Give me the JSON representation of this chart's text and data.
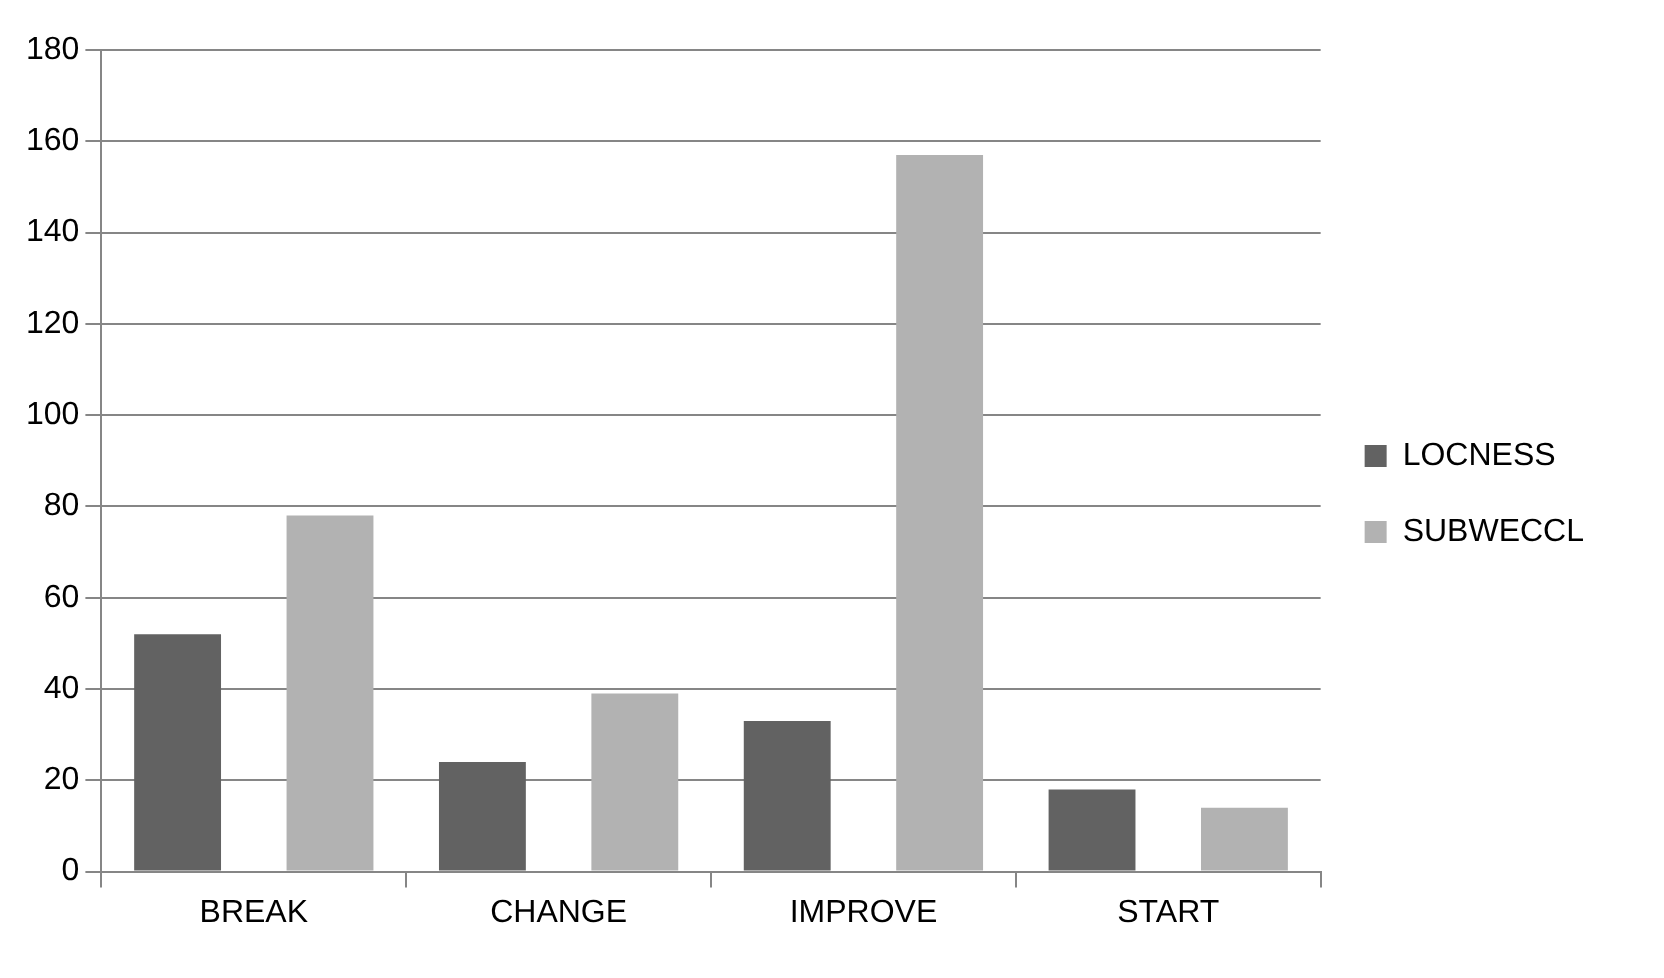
{
  "chart_data": {
    "type": "bar",
    "categories": [
      "BREAK",
      "CHANGE",
      "IMPROVE",
      "START"
    ],
    "series": [
      {
        "name": "LOCNESS",
        "color": "#626262",
        "values": [
          52,
          24,
          33,
          18
        ]
      },
      {
        "name": "SUBWECCL",
        "color": "#b2b2b2",
        "values": [
          78,
          39,
          157,
          14
        ]
      }
    ],
    "ylim": [
      0,
      180
    ],
    "yticks": [
      0,
      20,
      40,
      60,
      80,
      100,
      120,
      140,
      160,
      180
    ],
    "grid": "y",
    "legend": "right"
  }
}
